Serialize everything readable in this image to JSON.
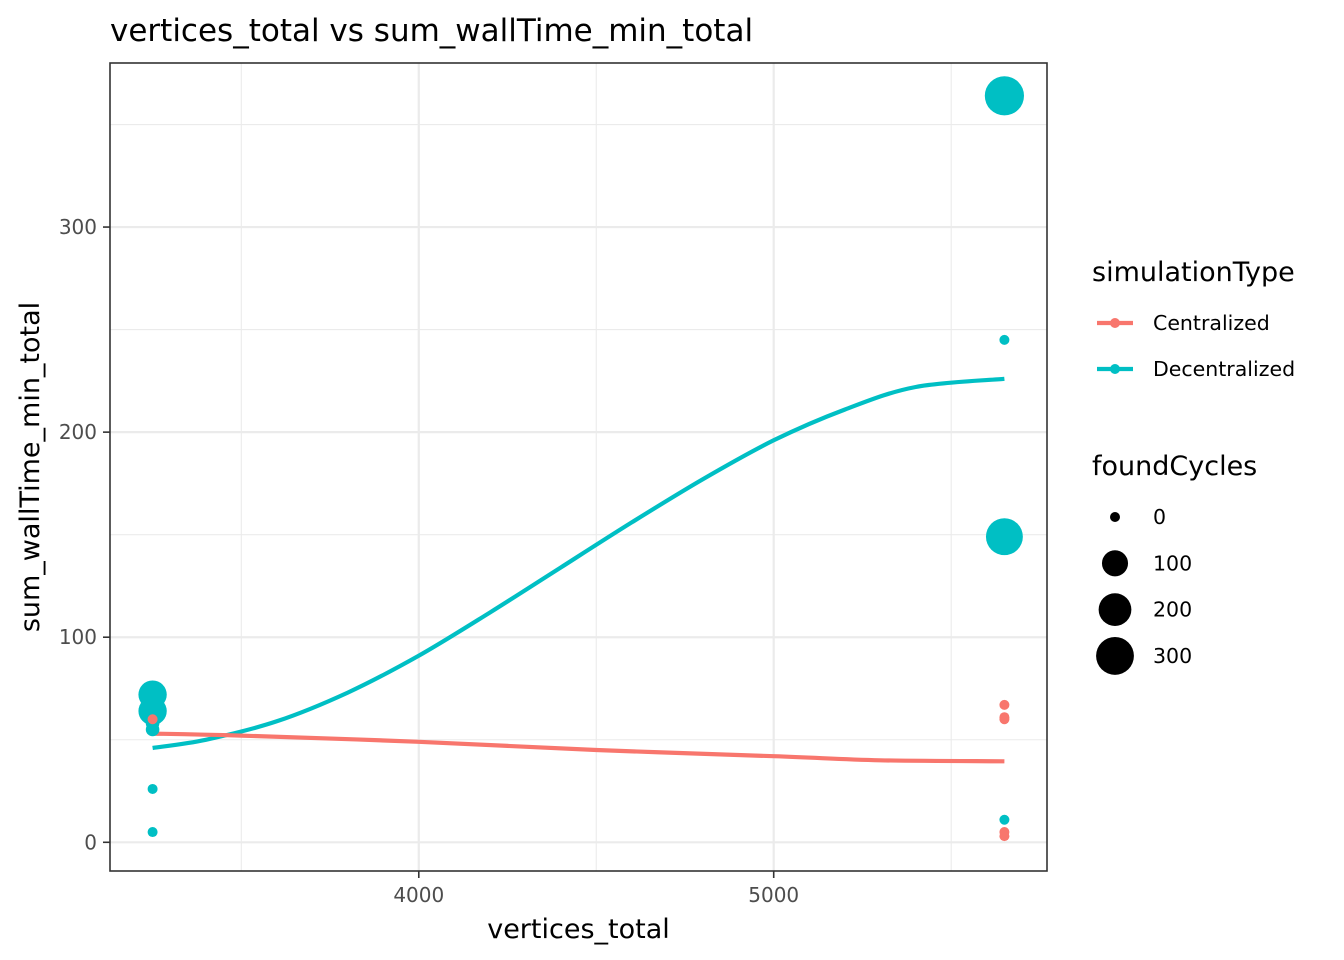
{
  "chart_data": {
    "type": "scatter",
    "title": "vertices_total  vs  sum_wallTime_min_total",
    "xlabel": "vertices_total",
    "ylabel": "sum_wallTime_min_total",
    "xlim": [
      3130,
      5770
    ],
    "ylim": [
      -14,
      380
    ],
    "x_ticks": [
      4000,
      5000
    ],
    "x_minor_ticks": [
      3500,
      4500,
      5500
    ],
    "y_ticks": [
      0,
      100,
      200,
      300
    ],
    "y_minor_ticks": [
      50,
      150,
      250,
      350
    ],
    "grid": true,
    "legend_position": "right",
    "color_legend": {
      "title": "simulationType",
      "entries": [
        {
          "name": "Centralized",
          "color": "#F8766D"
        },
        {
          "name": "Decentralized",
          "color": "#00BFC4"
        }
      ]
    },
    "size_legend": {
      "title": "foundCycles",
      "entries": [
        {
          "label": "0",
          "value": 0
        },
        {
          "label": "100",
          "value": 100
        },
        {
          "label": "200",
          "value": 200
        },
        {
          "label": "300",
          "value": 300
        }
      ]
    },
    "series": [
      {
        "name": "Decentralized",
        "color": "#00BFC4",
        "points": [
          {
            "x": 3250,
            "y": 72,
            "size": 130
          },
          {
            "x": 3250,
            "y": 64,
            "size": 130
          },
          {
            "x": 3250,
            "y": 58,
            "size": 5
          },
          {
            "x": 3250,
            "y": 55,
            "size": 5
          },
          {
            "x": 3250,
            "y": 26,
            "size": 0
          },
          {
            "x": 3250,
            "y": 5,
            "size": 0
          },
          {
            "x": 5650,
            "y": 364,
            "size": 330
          },
          {
            "x": 5650,
            "y": 245,
            "size": 0
          },
          {
            "x": 5650,
            "y": 149,
            "size": 280
          },
          {
            "x": 5650,
            "y": 11,
            "size": 0
          }
        ],
        "smooth": {
          "x": [
            3250,
            3400,
            3600,
            3800,
            4000,
            4200,
            4400,
            4600,
            4800,
            5000,
            5200,
            5400,
            5650
          ],
          "y": [
            46,
            50,
            59,
            73,
            91,
            112,
            134,
            156,
            177,
            196,
            211,
            222,
            226
          ]
        }
      },
      {
        "name": "Centralized",
        "color": "#F8766D",
        "points": [
          {
            "x": 3250,
            "y": 60,
            "size": 0
          },
          {
            "x": 5650,
            "y": 67,
            "size": 0
          },
          {
            "x": 5650,
            "y": 61,
            "size": 0
          },
          {
            "x": 5650,
            "y": 60,
            "size": 0
          },
          {
            "x": 5650,
            "y": 5,
            "size": 0
          },
          {
            "x": 5650,
            "y": 3,
            "size": 0
          }
        ],
        "smooth": {
          "x": [
            3250,
            3500,
            4000,
            4500,
            5000,
            5300,
            5650
          ],
          "y": [
            53,
            52,
            49,
            45,
            42,
            40,
            39.5
          ]
        }
      }
    ]
  }
}
